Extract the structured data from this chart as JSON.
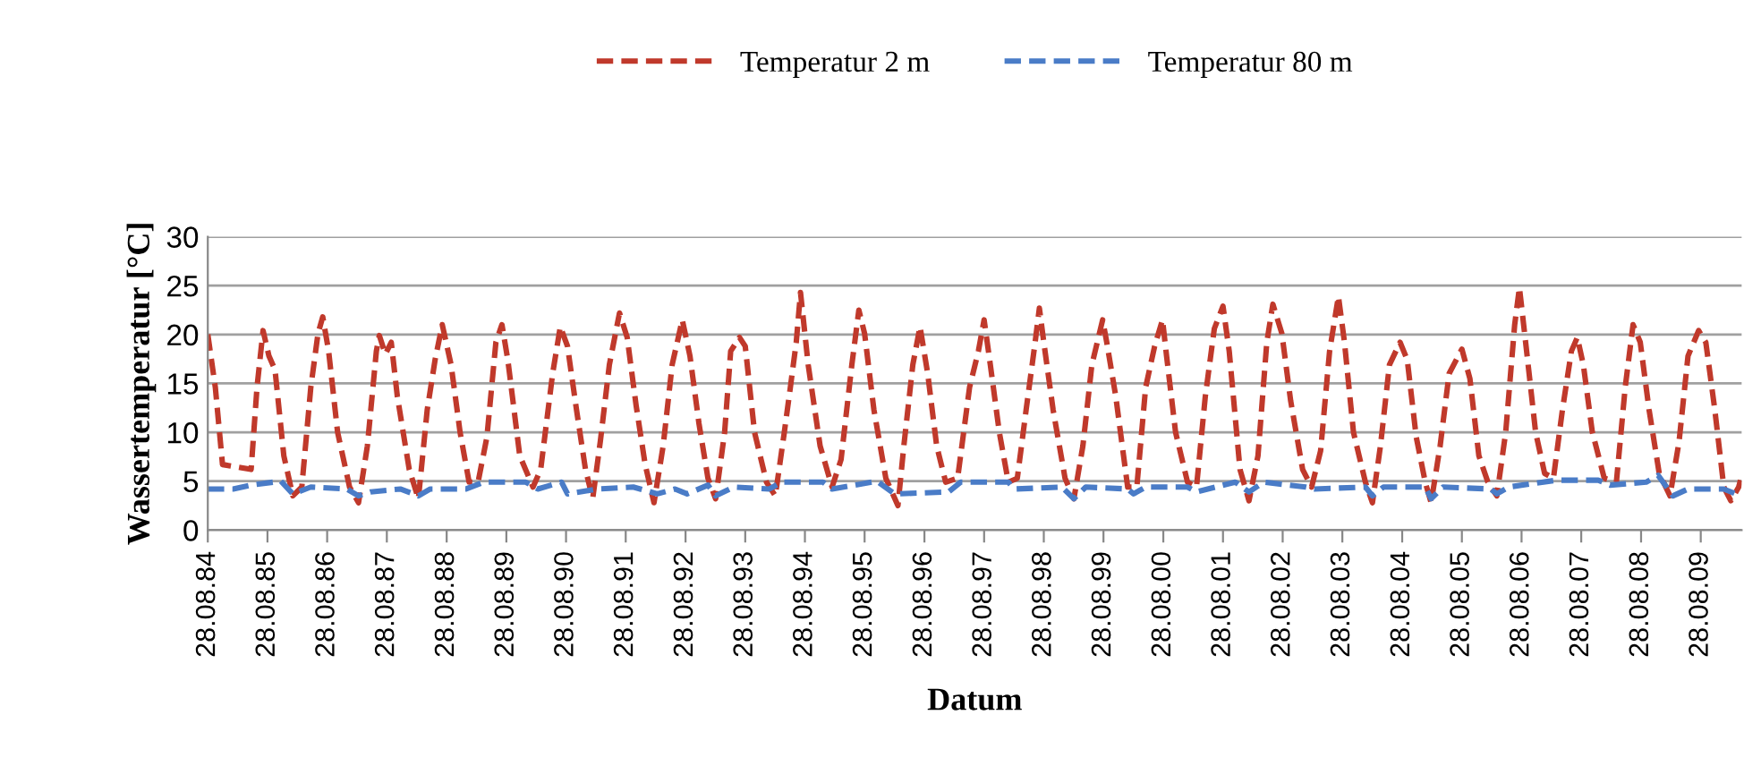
{
  "chart_data": {
    "type": "line",
    "xlabel": "Datum",
    "ylabel": "Wassertemperatur [°C]",
    "xlim": [
      "1984-08-28",
      "2010-05-05"
    ],
    "ylim": [
      0,
      30
    ],
    "yticks": [
      0,
      5,
      10,
      15,
      20,
      25,
      30
    ],
    "xticks": [
      {
        "value": "1984-08-28",
        "label": "28.08.84"
      },
      {
        "value": "1985-08-28",
        "label": "28.08.85"
      },
      {
        "value": "1986-08-28",
        "label": "28.08.86"
      },
      {
        "value": "1987-08-28",
        "label": "28.08.87"
      },
      {
        "value": "1988-08-28",
        "label": "28.08.88"
      },
      {
        "value": "1989-08-28",
        "label": "28.08.89"
      },
      {
        "value": "1990-08-28",
        "label": "28.08.90"
      },
      {
        "value": "1991-08-28",
        "label": "28.08.91"
      },
      {
        "value": "1992-08-28",
        "label": "28.08.92"
      },
      {
        "value": "1993-08-28",
        "label": "28.08.93"
      },
      {
        "value": "1994-08-28",
        "label": "28.08.94"
      },
      {
        "value": "1995-08-28",
        "label": "28.08.95"
      },
      {
        "value": "1996-08-28",
        "label": "28.08.96"
      },
      {
        "value": "1997-08-28",
        "label": "28.08.97"
      },
      {
        "value": "1998-08-28",
        "label": "28.08.98"
      },
      {
        "value": "1999-08-28",
        "label": "28.08.99"
      },
      {
        "value": "2000-08-28",
        "label": "28.08.00"
      },
      {
        "value": "2001-08-28",
        "label": "28.08.01"
      },
      {
        "value": "2002-08-28",
        "label": "28.08.02"
      },
      {
        "value": "2003-08-28",
        "label": "28.08.03"
      },
      {
        "value": "2004-08-28",
        "label": "28.08.04"
      },
      {
        "value": "2005-08-28",
        "label": "28.08.05"
      },
      {
        "value": "2006-08-28",
        "label": "28.08.06"
      },
      {
        "value": "2007-08-28",
        "label": "28.08.07"
      },
      {
        "value": "2008-08-28",
        "label": "28.08.08"
      },
      {
        "value": "2009-08-28",
        "label": "28.08.09"
      }
    ],
    "grid": "y",
    "legend": "top",
    "line_style": "dashed",
    "marker": "none",
    "series": [
      {
        "name": "Temperatur 2 m",
        "color": "#c0392b",
        "x": [
          "1984-08-28",
          "1984-10-13",
          "1984-11-26",
          "1985-05-20",
          "1985-06-25",
          "1985-08-01",
          "1985-09-06",
          "1985-10-13",
          "1985-12-06",
          "1986-01-30",
          "1986-03-26",
          "1986-05-20",
          "1986-07-03",
          "1986-08-01",
          "1986-09-06",
          "1986-10-31",
          "1987-01-12",
          "1987-03-08",
          "1987-05-01",
          "1987-06-25",
          "1987-07-13",
          "1987-08-19",
          "1987-09-24",
          "1987-10-31",
          "1988-01-12",
          "1988-03-08",
          "1988-05-01",
          "1988-06-18",
          "1988-08-01",
          "1988-09-24",
          "1988-11-18",
          "1989-01-12",
          "1989-03-08",
          "1989-05-01",
          "1989-06-25",
          "1989-08-01",
          "1989-09-06",
          "1989-11-18",
          "1990-02-07",
          "1990-03-26",
          "1990-06-07",
          "1990-07-24",
          "1990-09-06",
          "1990-10-31",
          "1990-12-25",
          "1991-02-07",
          "1991-03-26",
          "1991-05-20",
          "1991-07-21",
          "1991-09-06",
          "1991-10-31",
          "1991-12-25",
          "1992-02-17",
          "1992-04-13",
          "1992-06-07",
          "1992-08-08",
          "1992-09-24",
          "1992-11-18",
          "1993-01-12",
          "1993-02-28",
          "1993-04-24",
          "1993-05-31",
          "1993-07-24",
          "1993-08-28",
          "1993-10-24",
          "1994-01-05",
          "1994-02-28",
          "1994-04-24",
          "1994-05-31",
          "1994-07-06",
          "1994-08-01",
          "1994-09-17",
          "1994-11-29",
          "1995-02-10",
          "1995-04-06",
          "1995-06-11",
          "1995-07-24",
          "1995-08-28",
          "1995-10-24",
          "1996-01-05",
          "1996-03-19",
          "1996-04-24",
          "1996-06-18",
          "1996-08-01",
          "1996-09-17",
          "1996-11-11",
          "1997-01-05",
          "1997-03-19",
          "1997-05-31",
          "1997-07-24",
          "1997-08-28",
          "1997-10-05",
          "1997-11-29",
          "1998-01-23",
          "1998-03-19",
          "1998-05-12",
          "1998-07-06",
          "1998-08-01",
          "1998-08-28",
          "1998-10-24",
          "1999-01-05",
          "1999-02-28",
          "1999-04-24",
          "1999-06-18",
          "1999-08-23",
          "1999-09-17",
          "1999-11-11",
          "2000-01-23",
          "2000-03-19",
          "2000-05-12",
          "2000-07-06",
          "2000-08-23",
          "2000-09-17",
          "2000-11-11",
          "2001-01-23",
          "2001-03-19",
          "2001-05-12",
          "2001-07-06",
          "2001-08-28",
          "2001-10-05",
          "2001-12-10",
          "2002-02-03",
          "2002-03-30",
          "2002-05-23",
          "2002-06-29",
          "2002-08-23",
          "2002-10-16",
          "2002-12-28",
          "2003-02-21",
          "2003-04-17",
          "2003-06-11",
          "2003-08-04",
          "2003-09-10",
          "2003-11-04",
          "2004-01-16",
          "2004-02-28",
          "2004-04-17",
          "2004-06-11",
          "2004-08-15",
          "2004-09-28",
          "2004-11-22",
          "2005-01-16",
          "2005-02-21",
          "2005-04-17",
          "2005-06-11",
          "2005-08-28",
          "2005-10-16",
          "2005-12-10",
          "2006-02-03",
          "2006-03-30",
          "2006-05-23",
          "2006-07-17",
          "2006-08-15",
          "2006-09-28",
          "2006-11-22",
          "2007-01-16",
          "2007-03-11",
          "2007-05-05",
          "2007-06-29",
          "2007-08-04",
          "2007-09-10",
          "2007-11-04",
          "2008-01-16",
          "2008-03-30",
          "2008-05-23",
          "2008-07-10",
          "2008-08-23",
          "2008-10-16",
          "2008-12-17",
          "2009-02-21",
          "2009-04-17",
          "2009-06-11",
          "2009-08-15",
          "2009-09-28",
          "2009-11-22",
          "2010-01-16",
          "2010-02-28",
          "2010-04-17",
          "2010-04-28"
        ],
        "values": [
          20,
          14.6,
          6.7,
          6.2,
          14.6,
          20.4,
          17.8,
          16.4,
          7.6,
          3.5,
          4.4,
          14.6,
          20.1,
          21.8,
          18.3,
          10,
          4.4,
          2.8,
          8.6,
          18.3,
          19.9,
          18,
          19.2,
          13.7,
          6.2,
          3.2,
          12.3,
          17.4,
          21,
          16.9,
          10,
          4.9,
          4.9,
          9.5,
          19.2,
          21,
          17.4,
          7.6,
          4.4,
          6.2,
          16,
          20.8,
          18.8,
          12.3,
          6.2,
          3.2,
          9.1,
          16.9,
          22.2,
          19.7,
          12.7,
          6.7,
          2.8,
          8.6,
          16.9,
          21.5,
          17.8,
          10.9,
          5.3,
          3.2,
          10,
          18.3,
          19.7,
          18.8,
          10,
          4.9,
          3.5,
          10,
          14.6,
          19.2,
          24.3,
          16.9,
          8.6,
          4.4,
          7.2,
          16.9,
          22.5,
          20.1,
          12.3,
          5.3,
          2.5,
          8.6,
          16.9,
          20.8,
          16,
          8.6,
          4.9,
          5.3,
          14.6,
          18.3,
          21.5,
          16.9,
          10,
          4.9,
          5.3,
          12.3,
          19.2,
          22.7,
          19.2,
          12.3,
          5.3,
          3.2,
          8.6,
          16.9,
          21.5,
          19.2,
          13.7,
          4.4,
          4.4,
          14.6,
          18.8,
          21.5,
          17.8,
          10,
          4.9,
          4.4,
          13.7,
          20.6,
          22.9,
          18.3,
          6.2,
          3,
          7.6,
          19.2,
          23.1,
          20.1,
          13.2,
          6.2,
          4.4,
          8.1,
          18.3,
          23.9,
          19.2,
          10,
          4.9,
          2.8,
          8.6,
          16.9,
          19.2,
          17.4,
          9.5,
          4.9,
          2.8,
          8.6,
          16,
          18.5,
          15.5,
          7.6,
          4.9,
          3.5,
          10,
          21,
          24.8,
          18.3,
          10,
          5.8,
          5.3,
          12.3,
          18.3,
          19.7,
          16.9,
          10,
          5.3,
          4.9,
          14.6,
          21,
          19.2,
          12.3,
          5.8,
          3.5,
          9,
          17.8,
          20.4,
          19.2,
          12.3,
          4.4,
          3,
          4.4,
          5.1
        ]
      },
      {
        "name": "Temperatur 80 m",
        "color": "#4a7cc7",
        "x": [
          "1984-08-28",
          "1985-01-30",
          "1985-05-20",
          "1985-11-18",
          "1986-01-30",
          "1986-05-20",
          "1986-12-25",
          "1987-03-08",
          "1987-05-20",
          "1987-11-18",
          "1988-03-08",
          "1988-05-20",
          "1988-12-25",
          "1989-04-13",
          "1989-12-25",
          "1990-03-08",
          "1990-08-01",
          "1990-09-06",
          "1991-03-08",
          "1991-10-13",
          "1992-03-08",
          "1992-06-25",
          "1992-09-06",
          "1993-01-12",
          "1993-02-28",
          "1993-06-18",
          "1994-01-23",
          "1994-04-06",
          "1994-12-17",
          "1995-02-10",
          "1995-11-11",
          "1996-02-28",
          "1997-01-23",
          "1997-04-06",
          "1998-01-23",
          "1998-02-28",
          "1998-12-17",
          "1999-02-28",
          "1999-05-12",
          "2000-01-23",
          "2000-02-28",
          "2000-05-12",
          "2001-01-23",
          "2001-03-19",
          "2001-11-11",
          "2002-02-03",
          "2002-05-05",
          "2003-01-16",
          "2003-03-11",
          "2004-01-16",
          "2004-02-28",
          "2004-05-05",
          "2005-01-16",
          "2005-02-21",
          "2005-05-05",
          "2006-02-21",
          "2006-03-30",
          "2006-06-11",
          "2007-03-30",
          "2007-12-10",
          "2008-02-21",
          "2008-09-28",
          "2008-12-10",
          "2009-03-11",
          "2009-06-11",
          "2010-01-16",
          "2010-03-30"
        ],
        "values": [
          4.2,
          4.2,
          4.6,
          5.0,
          3.7,
          4.4,
          4.2,
          3.5,
          3.9,
          4.2,
          3.5,
          4.2,
          4.2,
          4.9,
          4.9,
          4.2,
          4.9,
          3.7,
          4.2,
          4.4,
          3.7,
          4.2,
          3.7,
          4.6,
          3.5,
          4.4,
          4.2,
          4.9,
          4.9,
          4.2,
          5.0,
          3.7,
          3.9,
          4.9,
          4.9,
          4.2,
          4.4,
          3.2,
          4.4,
          4.2,
          3.7,
          4.4,
          4.4,
          3.9,
          4.9,
          3.9,
          4.9,
          4.4,
          4.2,
          4.4,
          3.5,
          4.4,
          4.4,
          3.2,
          4.4,
          4.2,
          3.7,
          4.4,
          5.1,
          5.1,
          4.6,
          4.9,
          5.6,
          3.5,
          4.2,
          4.2,
          3.7
        ]
      }
    ]
  }
}
